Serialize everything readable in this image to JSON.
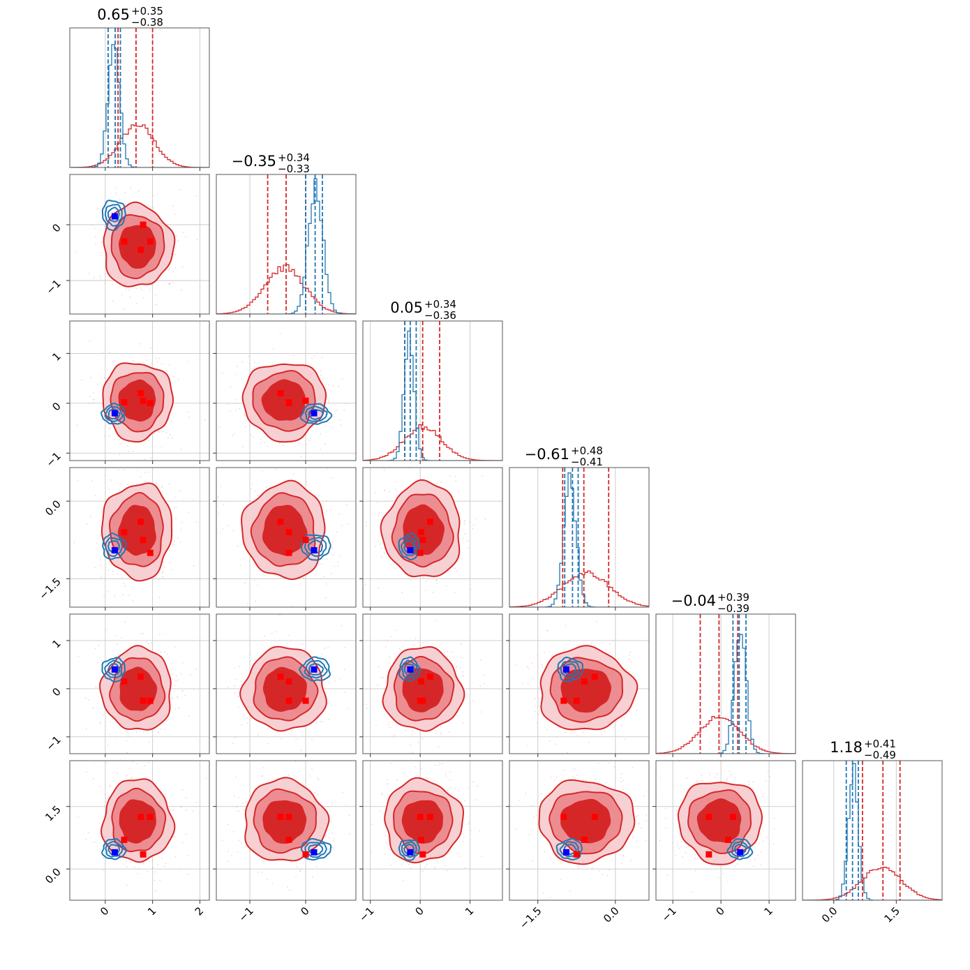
{
  "chart_data": {
    "type": "corner",
    "n_params": 6,
    "colors": {
      "posterior_a": "#d62728",
      "posterior_b": "#1f77b4",
      "truth_markers": "#ff0000",
      "injection_marker": "#0000ff"
    },
    "params": [
      {
        "range": [
          -0.75,
          2.2
        ],
        "ticks": [
          0,
          1,
          2
        ],
        "tick_labels": [
          "0",
          "1",
          "2"
        ],
        "title": {
          "median": "0.65",
          "plus": "+0.35",
          "minus": "−0.38"
        },
        "red": {
          "mean": 0.68,
          "sd": 0.36,
          "quantiles": [
            0.27,
            0.65,
            1.0
          ]
        },
        "blue": {
          "mean": 0.18,
          "sd": 0.12,
          "quantiles": [
            0.06,
            0.21,
            0.32
          ]
        },
        "truths": [
          0.75,
          0.4,
          0.8,
          0.95
        ],
        "injection": 0.2
      },
      {
        "range": [
          -1.6,
          0.9
        ],
        "ticks": [
          -1,
          0
        ],
        "tick_labels": [
          "−1",
          "0"
        ],
        "title": {
          "median": "−0.35",
          "plus": "+0.34",
          "minus": "−0.33"
        },
        "red": {
          "mean": -0.38,
          "sd": 0.36,
          "quantiles": [
            -0.68,
            -0.35,
            0.0
          ]
        },
        "blue": {
          "mean": 0.18,
          "sd": 0.13,
          "quantiles": [
            0.0,
            0.17,
            0.3
          ]
        },
        "truths": [
          -0.45,
          -0.3,
          0.0,
          -0.3
        ],
        "injection": 0.15
      },
      {
        "range": [
          -1.15,
          1.65
        ],
        "ticks": [
          -1,
          0,
          1
        ],
        "tick_labels": [
          "−1",
          "0",
          "1"
        ],
        "title": {
          "median": "0.05",
          "plus": "+0.34",
          "minus": "−0.36"
        },
        "red": {
          "mean": 0.05,
          "sd": 0.38,
          "quantiles": [
            -0.31,
            0.05,
            0.39
          ]
        },
        "blue": {
          "mean": -0.22,
          "sd": 0.1,
          "quantiles": [
            -0.31,
            -0.2,
            -0.08
          ]
        },
        "truths": [
          0.2,
          0.02,
          0.05,
          0.0
        ],
        "injection": -0.2
      },
      {
        "range": [
          -2.05,
          0.65
        ],
        "ticks": [
          -1.5,
          0
        ],
        "tick_labels": [
          "−1.5",
          "0.0"
        ],
        "title": {
          "median": "−0.61",
          "plus": "+0.48",
          "minus": "−0.41"
        },
        "red": {
          "mean": -0.57,
          "sd": 0.45,
          "quantiles": [
            -1.02,
            -0.61,
            -0.13
          ]
        },
        "blue": {
          "mean": -0.88,
          "sd": 0.12,
          "quantiles": [
            -0.98,
            -0.83,
            -0.72
          ]
        },
        "truths": [
          -0.4,
          -0.6,
          -0.75,
          -1.0
        ],
        "injection": -0.95
      },
      {
        "range": [
          -1.35,
          1.55
        ],
        "ticks": [
          -1,
          0,
          1
        ],
        "tick_labels": [
          "−1",
          "0",
          "1"
        ],
        "title": {
          "median": "−0.04",
          "plus": "+0.39",
          "minus": "−0.39"
        },
        "red": {
          "mean": -0.02,
          "sd": 0.42,
          "quantiles": [
            -0.43,
            -0.04,
            0.35
          ]
        },
        "blue": {
          "mean": 0.4,
          "sd": 0.12,
          "quantiles": [
            0.25,
            0.38,
            0.52
          ]
        },
        "truths": [
          0.25,
          0.15,
          -0.25,
          -0.25
        ],
        "injection": 0.4
      },
      {
        "range": [
          -0.75,
          2.6
        ],
        "ticks": [
          0,
          1.5
        ],
        "tick_labels": [
          "0.0",
          "1.5"
        ],
        "title": {
          "median": "1.18",
          "plus": "+0.41",
          "minus": "−0.49"
        },
        "red": {
          "mean": 1.15,
          "sd": 0.48,
          "quantiles": [
            0.69,
            1.18,
            1.59
          ]
        },
        "blue": {
          "mean": 0.47,
          "sd": 0.12,
          "quantiles": [
            0.3,
            0.45,
            0.59
          ]
        },
        "truths": [
          1.25,
          0.7,
          0.35,
          1.25
        ],
        "injection": 0.4
      }
    ],
    "grid": true,
    "legend": "none"
  }
}
